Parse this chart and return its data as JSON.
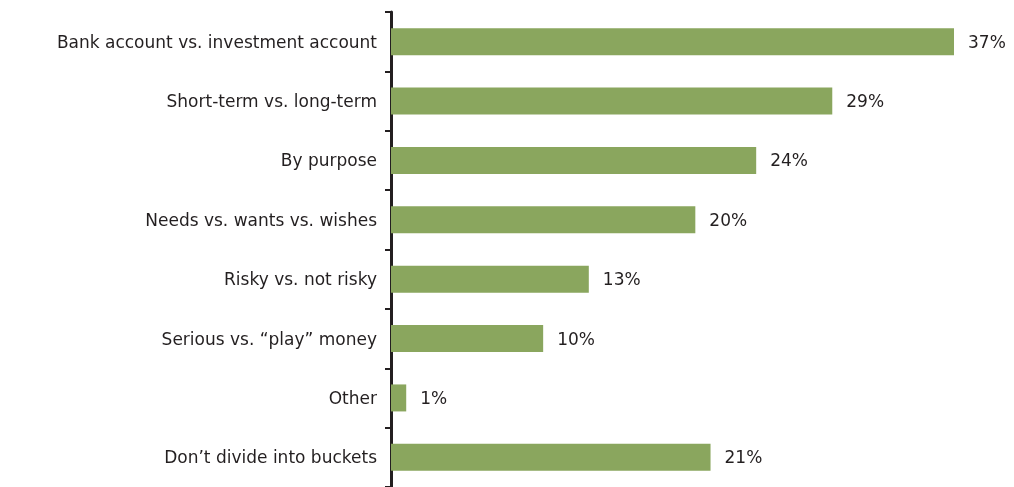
{
  "chart_data": {
    "type": "bar",
    "orientation": "horizontal",
    "categories": [
      "Bank account vs. investment account",
      "Short-term vs. long-term",
      "By purpose",
      "Needs vs. wants vs. wishes",
      "Risky vs. not risky",
      "Serious vs. “play” money",
      "Other",
      "Don’t divide into buckets"
    ],
    "values": [
      37,
      29,
      24,
      20,
      13,
      10,
      1,
      21
    ],
    "value_labels": [
      "37%",
      "29%",
      "24%",
      "20%",
      "13%",
      "10%",
      "1%",
      "21%"
    ],
    "color": "#8aa65e"
  }
}
